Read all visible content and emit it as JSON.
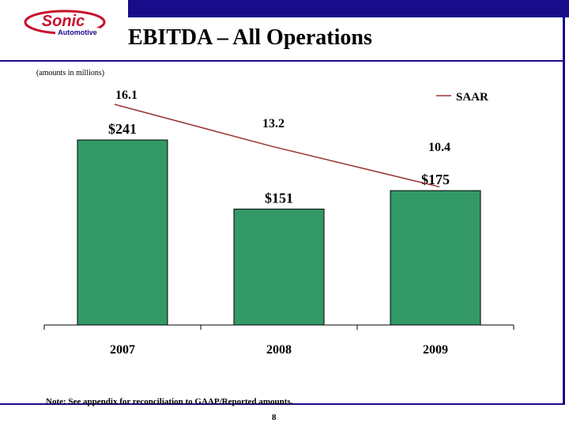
{
  "header": {
    "logo_word": "Sonic",
    "logo_sub": "Automotive",
    "title": "EBITDA – All Operations"
  },
  "subtitle": "(amounts in millions)",
  "footnote": "Note: See appendix for reconciliation to GAAP/Reported amounts.",
  "page_number": "8",
  "colors": {
    "bar": "#339966",
    "line": "#993333",
    "brand": "#1a0b8a",
    "logo_red": "#c8102e"
  },
  "chart_data": {
    "type": "bar",
    "categories": [
      "2007",
      "2008",
      "2009"
    ],
    "series": [
      {
        "values": [
          241,
          151,
          175
        ],
        "value_labels": [
          "$241",
          "$151",
          "$175"
        ]
      },
      {
        "name": "SAAR",
        "type": "line",
        "values": [
          16.1,
          13.2,
          10.4
        ],
        "value_labels": [
          "16.1",
          "13.2",
          "10.4"
        ]
      }
    ],
    "title": "",
    "xlabel": "",
    "ylabel": "",
    "legend": "top-right",
    "grid": false
  }
}
